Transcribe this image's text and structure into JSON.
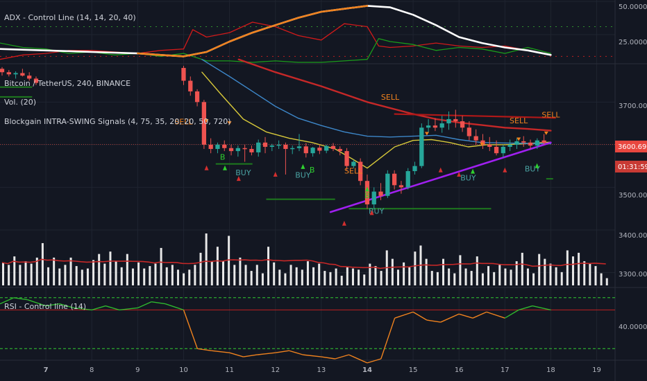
{
  "colors": {
    "background": "#131722",
    "grid": "#1f2430",
    "up": "#26a69a",
    "down": "#ef5350",
    "axis_text": "#b2b5be",
    "label_text": "#d1d4dc",
    "adx": "#ffffff",
    "di_plus": "#1b9c1b",
    "di_minus": "#d11a1a",
    "orange": "#f0821e",
    "ma_yellow": "#d8c93a",
    "ma_blue": "#3d87c9",
    "ma_red": "#c62828",
    "trend": "#a020f0",
    "support": "#1e7a1e",
    "price_tag": "#e8473f"
  },
  "x_axis": {
    "ticks": [
      "7",
      "8",
      "9",
      "10",
      "11",
      "12",
      "13",
      "14",
      "15",
      "16",
      "17",
      "18",
      "19"
    ]
  },
  "adx_pane": {
    "label": "ADX - Control Line (14, 14, 20, 40)",
    "y_ticks": [
      "50.0000",
      "25.0000"
    ]
  },
  "main_pane": {
    "label_symbol": "Bitcoin / TetherUS, 240, BINANCE",
    "label_vol": "Vol. (20)",
    "label_indicator": "Blockgain INTRA-SWING Signals (4, 75, 35, 20, 20, 50, 720)",
    "y_ticks": [
      "3700.00",
      "3600.00",
      "3500.00",
      "3400.00",
      "3300.00"
    ],
    "price_tag": "3600.69",
    "timer_tag": "01:31:59",
    "signals": [
      {
        "text": "SELL",
        "kind": "sell",
        "day": 10.0,
        "price": 3648
      },
      {
        "text": "SELL",
        "kind": "sell",
        "day": 14.5,
        "price": 3705
      },
      {
        "text": "SELL",
        "kind": "sell",
        "day": 17.3,
        "price": 3650
      },
      {
        "text": "SELL",
        "kind": "sell",
        "day": 18.0,
        "price": 3664
      },
      {
        "text": "SELL",
        "kind": "sell",
        "day": 13.7,
        "price": 3532
      },
      {
        "text": "BUY",
        "kind": "buy",
        "day": 11.3,
        "price": 3528
      },
      {
        "text": "BUY",
        "kind": "buy",
        "day": 12.6,
        "price": 3523
      },
      {
        "text": "BUY",
        "kind": "buy",
        "day": 14.2,
        "price": 3438
      },
      {
        "text": "BUY",
        "kind": "buy",
        "day": 16.2,
        "price": 3516
      },
      {
        "text": "BUY",
        "kind": "buy",
        "day": 17.6,
        "price": 3537
      },
      {
        "text": "B",
        "kind": "b",
        "day": 10.85,
        "price": 3565
      },
      {
        "text": "B",
        "kind": "b",
        "day": 12.8,
        "price": 3535
      },
      {
        "text": "B",
        "kind": "b",
        "day": 14.0,
        "price": 3475
      }
    ]
  },
  "rsi_pane": {
    "label": "RSI - Control line (14)",
    "y_ticks": [
      "40.0000"
    ]
  },
  "chart_data": [
    {
      "type": "line",
      "title": "ADX - Control Line (14, 14, 20, 40)",
      "x_range": [
        6.0,
        19.4
      ],
      "ylim": [
        16,
        57
      ],
      "control_lines": [
        40,
        20
      ],
      "series": [
        {
          "name": "ADX",
          "color": "#ffffff",
          "x": [
            6.0,
            7.0,
            8.0,
            9.0,
            9.5,
            10.0,
            10.5,
            11.0,
            11.5,
            12.0,
            12.5,
            13.0,
            13.5,
            14.0,
            14.5,
            15.0,
            15.5,
            16.0,
            16.5,
            17.0,
            17.5,
            18.0
          ],
          "values": [
            25,
            24,
            23,
            22,
            21,
            20,
            23,
            30,
            36,
            41,
            46,
            50,
            52,
            54,
            53,
            48,
            41,
            33,
            29,
            26,
            24,
            21
          ]
        },
        {
          "name": "orange",
          "color": "#f0821e",
          "x": [
            9.0,
            9.5,
            10.0,
            10.5,
            11.0,
            11.5,
            12.0,
            12.5,
            13.0,
            13.5,
            14.0
          ],
          "values": [
            22,
            21,
            20,
            23,
            30,
            36,
            41,
            46,
            50,
            52,
            54
          ]
        },
        {
          "name": "DI+",
          "color": "#1b9c1b",
          "x": [
            6.0,
            6.5,
            7.0,
            7.5,
            8.0,
            8.5,
            9.0,
            9.5,
            10.0,
            10.5,
            11.0,
            11.5,
            12.0,
            12.5,
            13.0,
            13.5,
            14.0,
            14.25,
            14.5,
            15.0,
            15.5,
            16.0,
            16.5,
            17.0,
            17.5,
            18.0
          ],
          "values": [
            29,
            26,
            25,
            22,
            23,
            21,
            22,
            20,
            22,
            17,
            17,
            16,
            17,
            16,
            16,
            17,
            18,
            32,
            30,
            28,
            24,
            26,
            25,
            22,
            26,
            22
          ]
        },
        {
          "name": "DI-",
          "color": "#d11a1a",
          "x": [
            6.0,
            6.5,
            7.0,
            7.5,
            8.0,
            8.5,
            9.0,
            9.5,
            10.0,
            10.2,
            10.5,
            11.0,
            11.5,
            12.0,
            12.5,
            13.0,
            13.5,
            14.0,
            14.25,
            14.5,
            15.0,
            15.5,
            16.0,
            16.5,
            17.0,
            17.5,
            18.0
          ],
          "values": [
            18,
            21,
            22,
            24,
            24,
            23,
            22,
            24,
            25,
            38,
            33,
            36,
            43,
            40,
            34,
            31,
            42,
            40,
            27,
            26,
            27,
            29,
            27,
            26,
            27,
            24,
            21
          ]
        }
      ]
    },
    {
      "type": "candlestick",
      "title": "Bitcoin / TetherUS, 240, BINANCE",
      "ylabel": "",
      "x_range": [
        6.0,
        19.4
      ],
      "ylim": [
        3270,
        3785
      ],
      "candles": [
        [
          3778,
          3782,
          3762,
          3770
        ],
        [
          3770,
          3775,
          3760,
          3765
        ],
        [
          3765,
          3772,
          3755,
          3768
        ],
        [
          3768,
          3778,
          3760,
          3762
        ],
        [
          3762,
          3770,
          3750,
          3755
        ],
        [
          3755,
          3760,
          3740,
          3745
        ],
        [
          3780,
          3785,
          3740,
          3750
        ],
        [
          3750,
          3760,
          3715,
          3725
        ],
        [
          3725,
          3730,
          3690,
          3700
        ],
        [
          3700,
          3705,
          3590,
          3600
        ],
        [
          3600,
          3615,
          3580,
          3590
        ],
        [
          3590,
          3605,
          3580,
          3600
        ],
        [
          3600,
          3610,
          3585,
          3592
        ],
        [
          3592,
          3600,
          3575,
          3585
        ],
        [
          3585,
          3598,
          3572,
          3592
        ],
        [
          3592,
          3600,
          3560,
          3590
        ],
        [
          3590,
          3598,
          3575,
          3582
        ],
        [
          3582,
          3612,
          3572,
          3605
        ],
        [
          3605,
          3618,
          3580,
          3595
        ],
        [
          3595,
          3602,
          3585,
          3598
        ],
        [
          3598,
          3610,
          3590,
          3600
        ],
        [
          3600,
          3605,
          3530,
          3590
        ],
        [
          3590,
          3598,
          3578,
          3592
        ],
        [
          3592,
          3625,
          3585,
          3596
        ],
        [
          3596,
          3604,
          3570,
          3580
        ],
        [
          3580,
          3595,
          3572,
          3593
        ],
        [
          3593,
          3600,
          3578,
          3586
        ],
        [
          3586,
          3600,
          3580,
          3597
        ],
        [
          3597,
          3604,
          3585,
          3590
        ],
        [
          3590,
          3596,
          3575,
          3585
        ],
        [
          3585,
          3592,
          3540,
          3550
        ],
        [
          3550,
          3565,
          3545,
          3560
        ],
        [
          3560,
          3568,
          3505,
          3515
        ],
        [
          3515,
          3530,
          3450,
          3460
        ],
        [
          3460,
          3500,
          3450,
          3490
        ],
        [
          3490,
          3510,
          3470,
          3480
        ],
        [
          3480,
          3540,
          3475,
          3532
        ],
        [
          3532,
          3540,
          3495,
          3505
        ],
        [
          3505,
          3515,
          3485,
          3500
        ],
        [
          3500,
          3545,
          3495,
          3538
        ],
        [
          3538,
          3560,
          3530,
          3550
        ],
        [
          3550,
          3650,
          3545,
          3640
        ],
        [
          3640,
          3660,
          3628,
          3645
        ],
        [
          3645,
          3662,
          3632,
          3640
        ],
        [
          3640,
          3668,
          3628,
          3650
        ],
        [
          3650,
          3678,
          3635,
          3660
        ],
        [
          3660,
          3682,
          3640,
          3655
        ],
        [
          3655,
          3668,
          3630,
          3640
        ],
        [
          3640,
          3655,
          3610,
          3620
        ],
        [
          3620,
          3636,
          3600,
          3610
        ],
        [
          3610,
          3625,
          3590,
          3600
        ],
        [
          3600,
          3618,
          3585,
          3595
        ],
        [
          3595,
          3610,
          3575,
          3580
        ],
        [
          3580,
          3600,
          3570,
          3595
        ],
        [
          3595,
          3612,
          3585,
          3600
        ],
        [
          3600,
          3615,
          3590,
          3608
        ],
        [
          3608,
          3620,
          3595,
          3605
        ],
        [
          3605,
          3612,
          3590,
          3598
        ],
        [
          3598,
          3615,
          3590,
          3610
        ],
        [
          3610,
          3625,
          3600,
          3604
        ]
      ],
      "overlays": [
        {
          "name": "yellow",
          "color": "#d8c93a",
          "x": [
            10.4,
            10.8,
            11.3,
            11.8,
            12.3,
            12.8,
            13.3,
            13.7,
            14.0,
            14.3,
            14.6,
            15.0,
            15.4,
            15.8,
            16.2,
            16.6,
            17.0,
            17.4,
            17.8,
            18.0
          ],
          "values": [
            3770,
            3720,
            3660,
            3630,
            3615,
            3605,
            3590,
            3565,
            3545,
            3570,
            3595,
            3610,
            3612,
            3605,
            3595,
            3600,
            3600,
            3602,
            3605,
            3606
          ]
        },
        {
          "name": "blue",
          "color": "#3d87c9",
          "x": [
            10.4,
            11.0,
            11.5,
            12.0,
            12.5,
            13.0,
            13.5,
            14.0,
            14.5,
            15.0,
            15.5,
            16.0,
            16.5,
            17.0,
            17.5,
            18.0
          ],
          "values": [
            3800,
            3760,
            3725,
            3690,
            3662,
            3645,
            3630,
            3620,
            3618,
            3620,
            3622,
            3612,
            3605,
            3604,
            3603,
            3602
          ]
        },
        {
          "name": "red",
          "color": "#c62828",
          "x": [
            11.2,
            12.0,
            13.0,
            14.0,
            15.0,
            15.5,
            16.0,
            16.5,
            17.0,
            17.5,
            18.0
          ],
          "values": [
            3800,
            3770,
            3737,
            3700,
            3672,
            3660,
            3652,
            3646,
            3640,
            3637,
            3633
          ]
        },
        {
          "name": "trend",
          "color": "#a020f0",
          "x": [
            13.2,
            18.0
          ],
          "values": [
            3442,
            3605
          ]
        },
        {
          "name": "resistance",
          "color": "#b01818",
          "x": [
            14.6,
            18.1
          ],
          "values": [
            3672,
            3663
          ]
        }
      ],
      "volume": [
        19,
        17,
        24,
        17,
        20,
        18,
        23,
        35,
        15,
        23,
        14,
        17,
        23,
        16,
        13,
        14,
        21,
        26,
        18,
        28,
        20,
        15,
        26,
        14,
        19,
        14,
        16,
        18,
        31,
        15,
        17,
        13,
        10,
        13,
        17,
        27,
        43,
        20,
        32,
        20,
        41,
        17,
        23,
        17,
        12,
        17,
        10,
        32,
        19,
        13,
        10,
        17,
        15,
        13,
        20,
        15,
        18,
        12,
        11,
        14,
        8,
        15,
        14,
        13,
        9,
        18,
        16,
        12,
        29,
        22,
        13,
        19,
        15,
        28,
        33,
        22,
        12,
        11,
        22,
        14,
        10,
        25,
        14,
        12,
        24,
        10,
        16,
        11,
        17,
        14,
        13,
        20,
        27,
        14,
        10,
        26,
        22,
        18,
        15,
        11,
        29,
        24,
        27,
        20,
        18,
        16,
        10,
        6
      ]
    },
    {
      "type": "line",
      "title": "RSI - Control line (14)",
      "x_range": [
        6.0,
        19.4
      ],
      "ylim": [
        28,
        62
      ],
      "control_lines": [
        58,
        52,
        33
      ],
      "series": [
        {
          "name": "RSI",
          "color": "#f0821e",
          "x": [
            6.0,
            6.3,
            6.6,
            7.0,
            7.3,
            7.6,
            8.0,
            8.3,
            8.6,
            9.0,
            9.3,
            9.6,
            10.0,
            10.3,
            10.6,
            11.0,
            11.3,
            11.6,
            12.0,
            12.3,
            12.6,
            13.0,
            13.3,
            13.6,
            14.0,
            14.3,
            14.6,
            15.0,
            15.3,
            15.6,
            16.0,
            16.3,
            16.6,
            17.0,
            17.3,
            17.6,
            18.0
          ],
          "values": [
            55,
            58,
            57,
            54,
            55,
            53,
            52,
            54,
            52,
            53,
            56,
            55,
            52,
            33,
            32,
            31,
            29,
            30,
            31,
            32,
            30,
            29,
            28,
            30,
            26,
            28,
            48,
            51,
            47,
            46,
            50,
            48,
            51,
            48,
            52,
            54,
            52
          ]
        }
      ]
    }
  ]
}
